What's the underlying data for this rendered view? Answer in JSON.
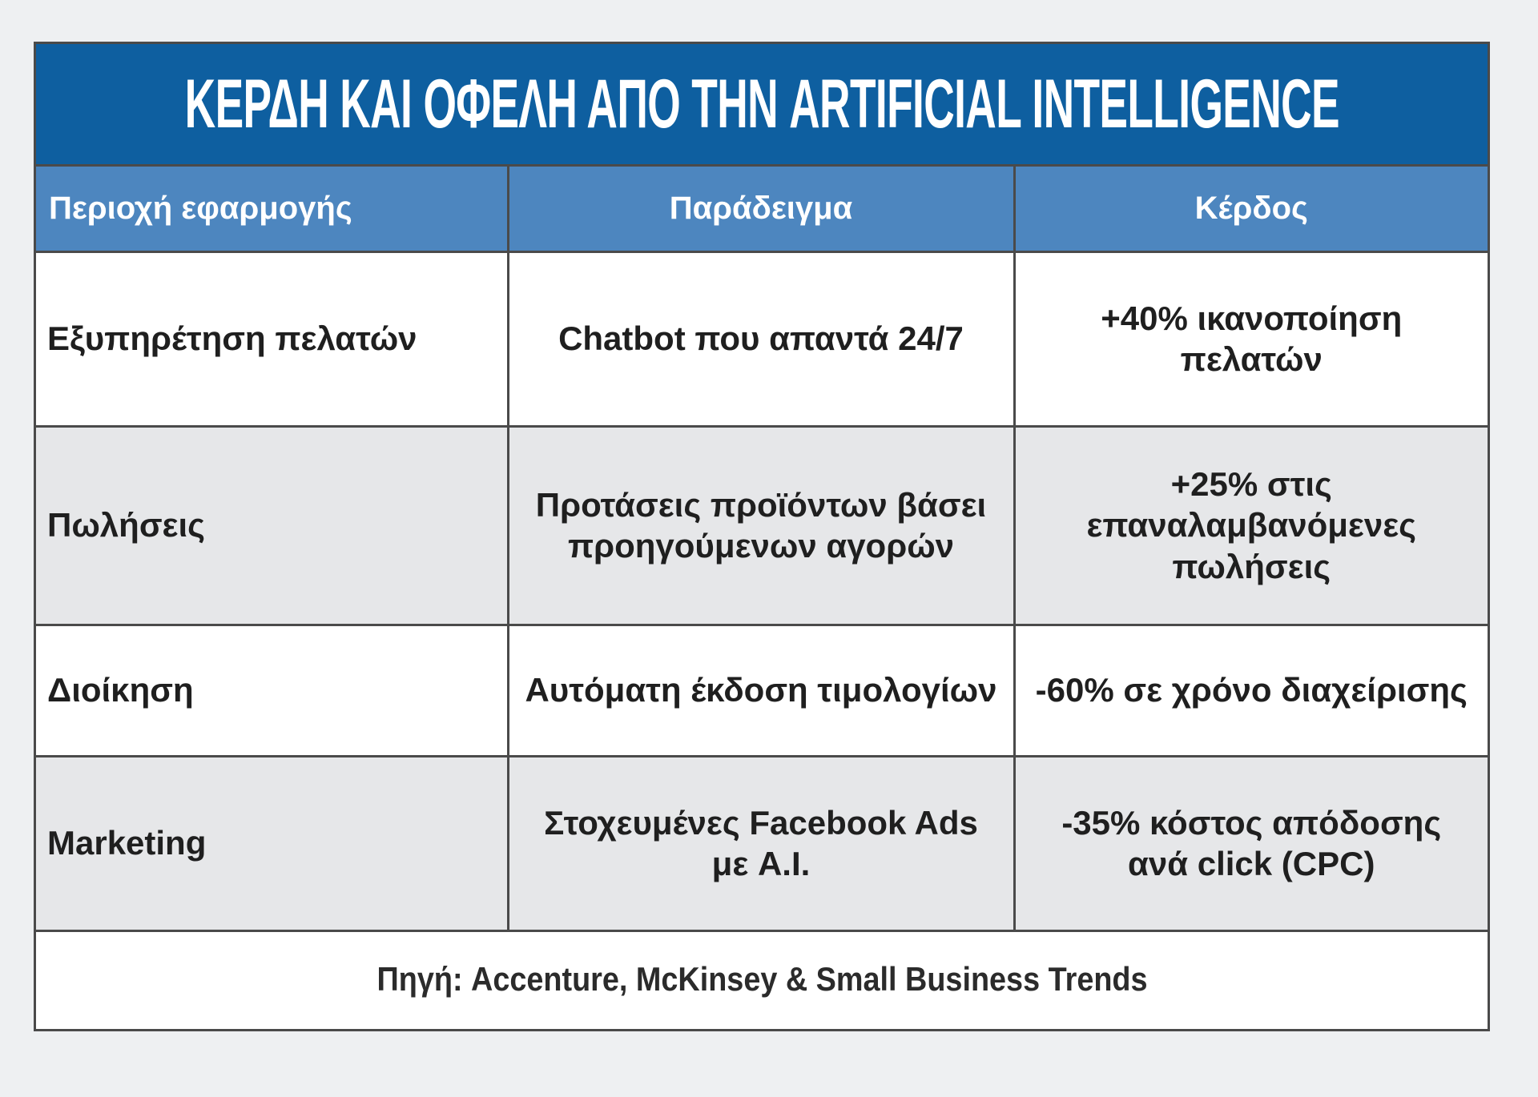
{
  "title": "ΚΕΡΔΗ ΚΑΙ ΟΦΕΛΗ ΑΠΟ ΤΗΝ ARTIFICIAL INTELLIGENCE",
  "table": {
    "headers": [
      "Περιοχή εφαρμογής",
      "Παράδειγμα",
      "Κέρδος"
    ],
    "rows": [
      [
        "Εξυπηρέτηση πελατών",
        "Chatbot που απαντά 24/7",
        "+40% ικανοποίηση πελατών"
      ],
      [
        "Πωλήσεις",
        "Προτάσεις προϊόντων βάσει προηγούμενων αγορών",
        "+25% στις επαναλαμβανόμενες πωλήσεις"
      ],
      [
        "Διοίκηση",
        "Αυτόματη έκδοση τιμολογίων",
        "-60% σε χρόνο διαχείρισης"
      ],
      [
        "Marketing",
        "Στοχευμένες Facebook Ads με A.I.",
        "-35% κόστος απόδοσης ανά click (CPC)"
      ]
    ]
  },
  "source": "Πηγή: Accenture, McKinsey & Small Business Trends",
  "colors": {
    "title_bg": "#0e5fa0",
    "header_bg": "#4d86bf",
    "alt_row_bg": "#e6e7e9",
    "border": "#4a4a4a"
  }
}
